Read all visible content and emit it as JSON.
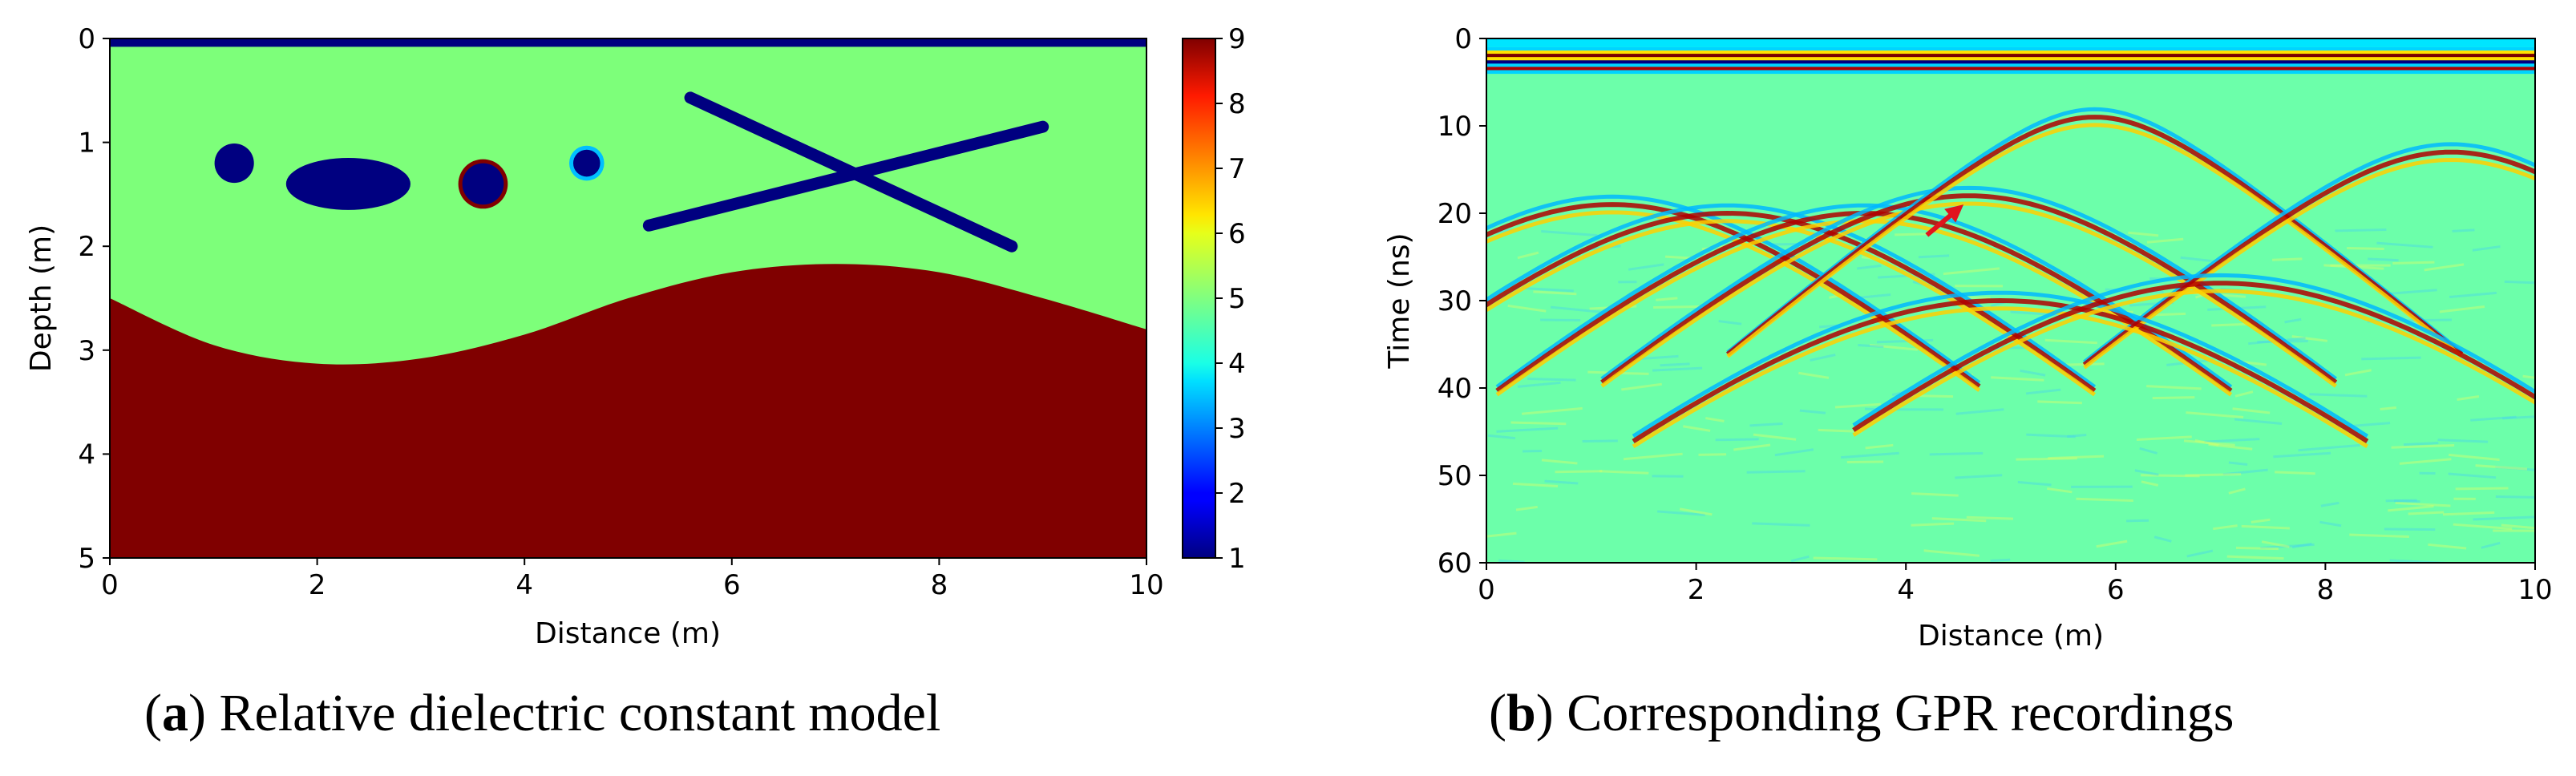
{
  "chart_data": [
    {
      "id": "a",
      "type": "heatmap",
      "title": "",
      "xlabel": "Distance (m)",
      "ylabel": "Depth (m)",
      "xlim": [
        0,
        10
      ],
      "ylim": [
        5,
        0
      ],
      "xticks": [
        "0",
        "2",
        "4",
        "6",
        "8",
        "10"
      ],
      "yticks": [
        "0",
        "1",
        "2",
        "3",
        "4",
        "5"
      ],
      "colorbar": {
        "min": 1,
        "max": 9,
        "ticks": [
          "1",
          "2",
          "3",
          "4",
          "5",
          "6",
          "7",
          "8",
          "9"
        ],
        "colormap": "jet"
      },
      "regions": [
        {
          "name": "air-layer",
          "value": 1,
          "depth_range": [
            0,
            0.08
          ]
        },
        {
          "name": "background-soil",
          "value": 5
        },
        {
          "name": "bedrock",
          "value": 9,
          "interface_depth": [
            [
              0,
              2.5
            ],
            [
              1,
              2.95
            ],
            [
              2,
              3.13
            ],
            [
              3,
              3.08
            ],
            [
              4,
              2.85
            ],
            [
              5,
              2.5
            ],
            [
              6,
              2.25
            ],
            [
              7,
              2.17
            ],
            [
              8,
              2.25
            ],
            [
              9,
              2.5
            ],
            [
              10,
              2.8
            ]
          ]
        }
      ],
      "objects": [
        {
          "name": "circle-1",
          "value": 1,
          "center": [
            1.2,
            1.2
          ],
          "radius": 0.19
        },
        {
          "name": "ellipse",
          "value": 1,
          "center": [
            2.3,
            1.4
          ],
          "radii": [
            0.6,
            0.25
          ]
        },
        {
          "name": "ring-circle",
          "value": 1,
          "outline_value": 9,
          "center": [
            3.6,
            1.4
          ],
          "radius": 0.2
        },
        {
          "name": "small-circle",
          "value": 1,
          "outline_value": 3.5,
          "center": [
            4.6,
            1.2
          ],
          "radius": 0.13
        },
        {
          "name": "crack-1",
          "value": 1,
          "from": [
            5.6,
            0.57
          ],
          "to": [
            8.7,
            2.0
          ]
        },
        {
          "name": "crack-2",
          "value": 1,
          "from": [
            5.2,
            1.8
          ],
          "to": [
            9.0,
            0.85
          ]
        }
      ],
      "caption_label": "a",
      "caption_text": "Relative dielectric constant model"
    },
    {
      "id": "b",
      "type": "heatmap",
      "title": "",
      "xlabel": "Distance (m)",
      "ylabel": "Time (ns)",
      "xlim": [
        0,
        10
      ],
      "ylim": [
        60,
        0
      ],
      "xticks": [
        "0",
        "2",
        "4",
        "6",
        "8",
        "10"
      ],
      "yticks": [
        "0",
        "10",
        "20",
        "30",
        "40",
        "50",
        "60"
      ],
      "background_value": "zero amplitude",
      "direct_wave_time_ns": [
        1,
        4
      ],
      "hyperbolas": [
        {
          "apex_distance": 1.2,
          "apex_time": 19
        },
        {
          "apex_distance": 2.3,
          "apex_time": 20
        },
        {
          "apex_distance": 3.6,
          "apex_time": 20
        },
        {
          "apex_distance": 4.6,
          "apex_time": 18
        },
        {
          "apex_distance": 5.8,
          "apex_time": 9
        },
        {
          "apex_distance": 9.2,
          "apex_time": 13
        },
        {
          "apex_distance": 4.9,
          "apex_time": 30
        },
        {
          "apex_distance": 7.0,
          "apex_time": 28
        }
      ],
      "annotation": {
        "type": "arrow",
        "color": "#e0141e",
        "from": [
          4.2,
          22.5
        ],
        "to": [
          4.55,
          19
        ]
      },
      "caption_label": "b",
      "caption_text": "Corresponding GPR recordings"
    }
  ]
}
